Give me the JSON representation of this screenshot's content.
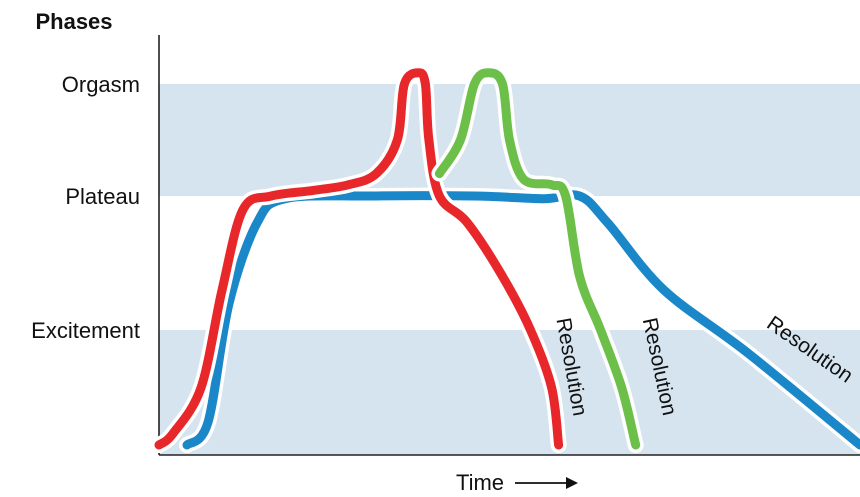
{
  "chart_data": {
    "type": "line",
    "title": "Phases",
    "xlabel": "Time",
    "ylabel": "",
    "y_categories": [
      "Excitement",
      "Plateau",
      "Orgasm"
    ],
    "bands": [
      {
        "from": 0,
        "to": 1,
        "color": "#d6e4ef"
      },
      {
        "from": 2,
        "to": 3,
        "color": "#d6e4ef"
      }
    ],
    "grid": false,
    "legend": "none",
    "series": [
      {
        "color": "#e8272b",
        "label": "Resolution",
        "points": [
          [
            0,
            0.0
          ],
          [
            0.02,
            0.1
          ],
          [
            0.06,
            0.5
          ],
          [
            0.09,
            1.3
          ],
          [
            0.12,
            1.9
          ],
          [
            0.16,
            2.0
          ],
          [
            0.22,
            2.05
          ],
          [
            0.27,
            2.1
          ],
          [
            0.31,
            2.2
          ],
          [
            0.34,
            2.5
          ],
          [
            0.35,
            3.0
          ],
          [
            0.37,
            3.1
          ],
          [
            0.38,
            3.0
          ],
          [
            0.385,
            2.5
          ],
          [
            0.4,
            2.0
          ],
          [
            0.44,
            1.8
          ],
          [
            0.49,
            1.4
          ],
          [
            0.53,
            1.0
          ],
          [
            0.56,
            0.5
          ],
          [
            0.57,
            0.0
          ]
        ]
      },
      {
        "color": "#6cc04a",
        "label": "Resolution",
        "points": [
          [
            0.4,
            2.2
          ],
          [
            0.43,
            2.5
          ],
          [
            0.45,
            3.0
          ],
          [
            0.47,
            3.1
          ],
          [
            0.49,
            3.0
          ],
          [
            0.5,
            2.5
          ],
          [
            0.52,
            2.15
          ],
          [
            0.56,
            2.1
          ],
          [
            0.58,
            2.0
          ],
          [
            0.6,
            1.4
          ],
          [
            0.63,
            1.0
          ],
          [
            0.66,
            0.5
          ],
          [
            0.68,
            0.0
          ]
        ]
      },
      {
        "color": "#1a87c9",
        "label": "Resolution",
        "points": [
          [
            0.04,
            0.0
          ],
          [
            0.07,
            0.2
          ],
          [
            0.1,
            1.2
          ],
          [
            0.14,
            1.8
          ],
          [
            0.18,
            1.98
          ],
          [
            0.3,
            2.0
          ],
          [
            0.45,
            2.0
          ],
          [
            0.55,
            1.98
          ],
          [
            0.6,
            2.0
          ],
          [
            0.64,
            1.8
          ],
          [
            0.72,
            1.3
          ],
          [
            0.84,
            0.8
          ],
          [
            1.0,
            0.0
          ]
        ]
      }
    ]
  }
}
